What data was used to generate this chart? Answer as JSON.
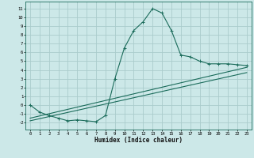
{
  "xlabel": "Humidex (Indice chaleur)",
  "bg_color": "#cce8e8",
  "grid_color": "#aacccc",
  "line_color": "#1a6b5a",
  "xlim": [
    -0.5,
    23.5
  ],
  "ylim": [
    -2.8,
    11.8
  ],
  "xticks": [
    0,
    1,
    2,
    3,
    4,
    5,
    6,
    7,
    8,
    9,
    10,
    11,
    12,
    13,
    14,
    15,
    16,
    17,
    18,
    19,
    20,
    21,
    22,
    23
  ],
  "yticks": [
    -2,
    -1,
    0,
    1,
    2,
    3,
    4,
    5,
    6,
    7,
    8,
    9,
    10,
    11
  ],
  "curve1_x": [
    0,
    1,
    2,
    3,
    4,
    5,
    6,
    7,
    8,
    9,
    10,
    11,
    12,
    13,
    14,
    15,
    16,
    17,
    18,
    19,
    20,
    21,
    22,
    23
  ],
  "curve1_y": [
    0.0,
    -0.8,
    -1.2,
    -1.5,
    -1.8,
    -1.7,
    -1.8,
    -1.9,
    -1.2,
    3.0,
    6.5,
    8.5,
    9.5,
    11.0,
    10.5,
    8.5,
    5.7,
    5.5,
    5.0,
    4.7,
    4.7,
    4.7,
    4.6,
    4.5
  ],
  "line2_x": [
    0,
    23
  ],
  "line2_y": [
    -1.5,
    4.3
  ],
  "line3_x": [
    0,
    23
  ],
  "line3_y": [
    -1.8,
    3.7
  ],
  "tick_fontsize": 4.0,
  "xlabel_fontsize": 5.5,
  "linewidth": 0.8,
  "marker_size": 2.5
}
